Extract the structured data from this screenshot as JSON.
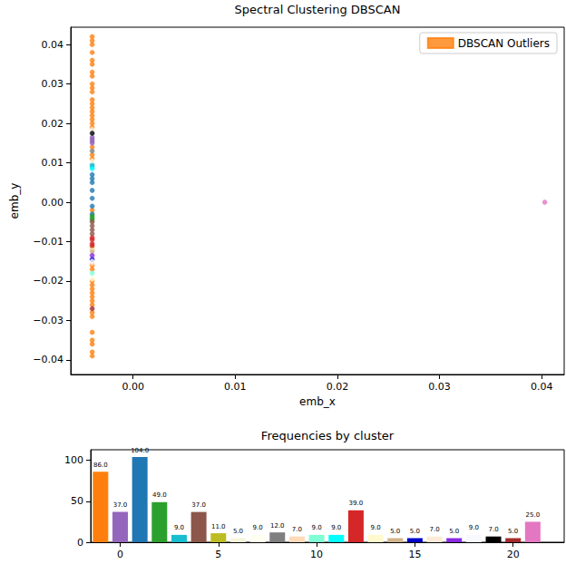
{
  "chart_data": [
    {
      "type": "scatter",
      "title": "Spectral Clustering DBSCAN",
      "x_label": "emb_x",
      "y_label": "emb_y",
      "xlim": [
        -0.0061,
        0.0422
      ],
      "ylim": [
        -0.0437,
        0.0444
      ],
      "xticks": [
        {
          "value": 0,
          "label": "0.00"
        },
        0.01,
        0.02,
        0.03,
        0.04
      ],
      "yticks": [
        {
          "value": -0.04,
          "label": "−0.04"
        },
        {
          "value": -0.03,
          "label": "−0.03"
        },
        {
          "value": -0.02,
          "label": "−0.02"
        },
        {
          "value": -0.01,
          "label": "−0.01"
        },
        {
          "value": 0,
          "label": "0.00"
        },
        0.01,
        0.02,
        0.03,
        0.04
      ],
      "grid": false,
      "legend": "upper right",
      "marker": "circle",
      "series": [
        {
          "name": "DBSCAN Outliers",
          "color": "#ff7f0e",
          "x": [
            -0.004,
            -0.004,
            -0.004,
            -0.004,
            -0.004,
            -0.004,
            -0.004,
            -0.004,
            -0.004,
            -0.004,
            -0.004,
            -0.004,
            -0.004,
            -0.004,
            -0.004,
            -0.004,
            -0.004,
            -0.004,
            -0.004,
            -0.004,
            -0.004,
            -0.004,
            -0.004,
            -0.004,
            -0.004,
            -0.004,
            -0.004,
            -0.004,
            -0.004,
            -0.004,
            -0.004,
            -0.004,
            -0.004,
            -0.004,
            -0.004,
            -0.004,
            -0.004,
            -0.004,
            -0.004,
            -0.004
          ],
          "y": [
            0.042,
            0.041,
            0.04,
            0.038,
            0.036,
            0.035,
            0.033,
            0.032,
            0.03,
            0.029,
            0.028,
            0.026,
            0.025,
            0.024,
            0.023,
            0.022,
            0.021,
            0.02,
            0.019,
            0.014,
            0.012,
            0.011,
            -0.002,
            -0.012,
            -0.016,
            -0.017,
            -0.02,
            -0.021,
            -0.022,
            -0.023,
            -0.024,
            -0.025,
            -0.026,
            -0.028,
            -0.029,
            -0.033,
            -0.035,
            -0.036,
            -0.038,
            -0.039
          ]
        },
        {
          "color": "#9467bd",
          "x": [
            -0.004,
            -0.004,
            -0.004,
            -0.004
          ],
          "y": [
            0.015,
            0.0155,
            0.016,
            0.0165
          ]
        },
        {
          "color": "#1f77b4",
          "x": [
            -0.004,
            -0.004,
            -0.004,
            -0.004,
            -0.004,
            -0.004,
            -0.004
          ],
          "y": [
            0.007,
            0.006,
            0.005,
            0.003,
            0.001,
            -0.001,
            -0.003
          ]
        },
        {
          "color": "#2ca02c",
          "x": [
            -0.004,
            -0.004,
            -0.004
          ],
          "y": [
            -0.0035,
            -0.004,
            -0.0045
          ]
        },
        {
          "color": "#17becf",
          "x": [
            -0.004,
            -0.004
          ],
          "y": [
            0.0095,
            0.009
          ]
        },
        {
          "color": "#8c564b",
          "x": [
            -0.004,
            -0.004,
            -0.004,
            -0.004
          ],
          "y": [
            -0.005,
            -0.006,
            -0.007,
            -0.008
          ]
        },
        {
          "color": "#bcbd22",
          "x": [
            -0.004
          ],
          "y": [
            -0.0115
          ]
        },
        {
          "color": "#f5f5dc",
          "x": [
            -0.004
          ],
          "y": [
            0.0105
          ]
        },
        {
          "color": "#fffff0",
          "x": [
            -0.004
          ],
          "y": [
            -0.012
          ]
        },
        {
          "color": "#7f7f7f",
          "x": [
            -0.004
          ],
          "y": [
            0.013
          ]
        },
        {
          "color": "#ffdab9",
          "x": [
            -0.004
          ],
          "y": [
            -0.0155
          ]
        },
        {
          "color": "#7fffd4",
          "x": [
            -0.004
          ],
          "y": [
            -0.018
          ]
        },
        {
          "color": "#00ffff",
          "x": [
            -0.004
          ],
          "y": [
            0.0085
          ]
        },
        {
          "color": "#d62728",
          "x": [
            -0.004,
            -0.004,
            -0.004,
            -0.004
          ],
          "y": [
            -0.009,
            -0.0095,
            -0.0105,
            -0.011
          ]
        },
        {
          "color": "#fffacd",
          "x": [
            -0.004
          ],
          "y": [
            -0.0195
          ]
        },
        {
          "color": "#d2b48c",
          "x": [
            -0.004
          ],
          "y": [
            -0.0125
          ]
        },
        {
          "color": "#0000cd",
          "x": [
            -0.004
          ],
          "y": [
            -0.0145
          ]
        },
        {
          "color": "#faebd7",
          "x": [
            -0.004
          ],
          "y": [
            0.0185
          ]
        },
        {
          "color": "#8a2be2",
          "x": [
            -0.004
          ],
          "y": [
            -0.0135
          ]
        },
        {
          "color": "#f8f8ff",
          "x": [
            -0.004
          ],
          "y": [
            -0.015
          ]
        },
        {
          "color": "#000000",
          "x": [
            -0.004
          ],
          "y": [
            0.0175
          ]
        },
        {
          "color": "#a52a2a",
          "x": [
            -0.004
          ],
          "y": [
            -0.027
          ]
        },
        {
          "color": "#e377c2",
          "x": [
            0.0403
          ],
          "y": [
            0
          ]
        }
      ]
    },
    {
      "type": "bar",
      "title": "Frequencies by cluster",
      "x": [
        -1,
        0,
        1,
        2,
        3,
        4,
        5,
        6,
        7,
        8,
        9,
        10,
        11,
        12,
        13,
        14,
        15,
        16,
        17,
        18,
        19,
        20,
        21
      ],
      "values": [
        86,
        37,
        104,
        49,
        9,
        37,
        11,
        5,
        9,
        12,
        7,
        9,
        9,
        39,
        9,
        5,
        5,
        7,
        5,
        9,
        7,
        5,
        25
      ],
      "value_labels": [
        "86.0",
        "37.0",
        "104.0",
        "49.0",
        "9.0",
        "37.0",
        "11.0",
        "5.0",
        "9.0",
        "12.0",
        "7.0",
        "9.0",
        "9.0",
        "39.0",
        "9.0",
        "5.0",
        "5.0",
        "7.0",
        "5.0",
        "9.0",
        "7.0",
        "5.0",
        "25.0"
      ],
      "colors": [
        "#ff7f0e",
        "#9467bd",
        "#1f77b4",
        "#2ca02c",
        "#17becf",
        "#8c564b",
        "#bcbd22",
        "#f5f5dc",
        "#fffff0",
        "#7f7f7f",
        "#ffdab9",
        "#7fffd4",
        "#00ffff",
        "#d62728",
        "#fffacd",
        "#d2b48c",
        "#0000cd",
        "#faebd7",
        "#8a2be2",
        "#f8f8ff",
        "#000000",
        "#a52a2a",
        "#e377c2"
      ],
      "data_labels": true,
      "grid": false,
      "xlim": [
        -1.5,
        22.6
      ],
      "xticks": [
        0,
        5,
        10,
        15,
        20
      ],
      "ylim": [
        0,
        113
      ],
      "yticks": [
        0,
        50,
        100
      ]
    }
  ]
}
